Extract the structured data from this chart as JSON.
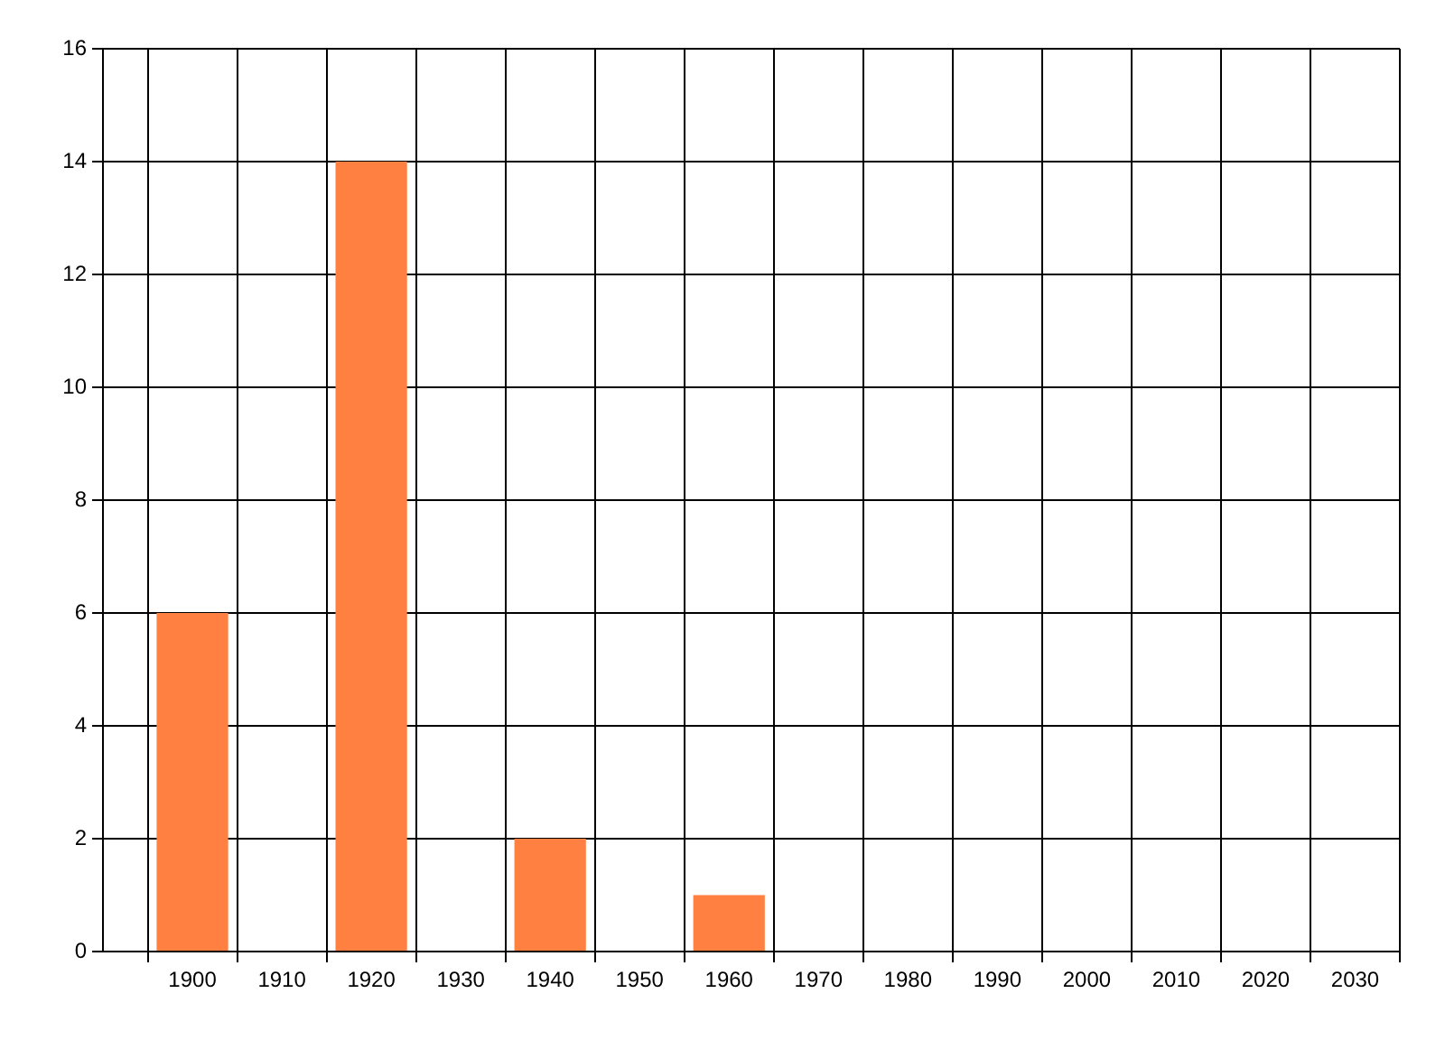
{
  "chart_data": {
    "type": "bar",
    "x": [
      1900,
      1920,
      1940,
      1960
    ],
    "values": [
      6,
      14,
      2,
      1
    ],
    "color": "#ff8040",
    "xlim": [
      1890,
      2035
    ],
    "xticks": [
      1900,
      1910,
      1920,
      1930,
      1940,
      1950,
      1960,
      1970,
      1980,
      1990,
      2000,
      2010,
      2020,
      2030
    ],
    "ylim": [
      0,
      16
    ],
    "yticks": [
      0,
      2,
      4,
      6,
      8,
      10,
      12,
      14,
      16
    ],
    "grid": true,
    "legend": false
  }
}
